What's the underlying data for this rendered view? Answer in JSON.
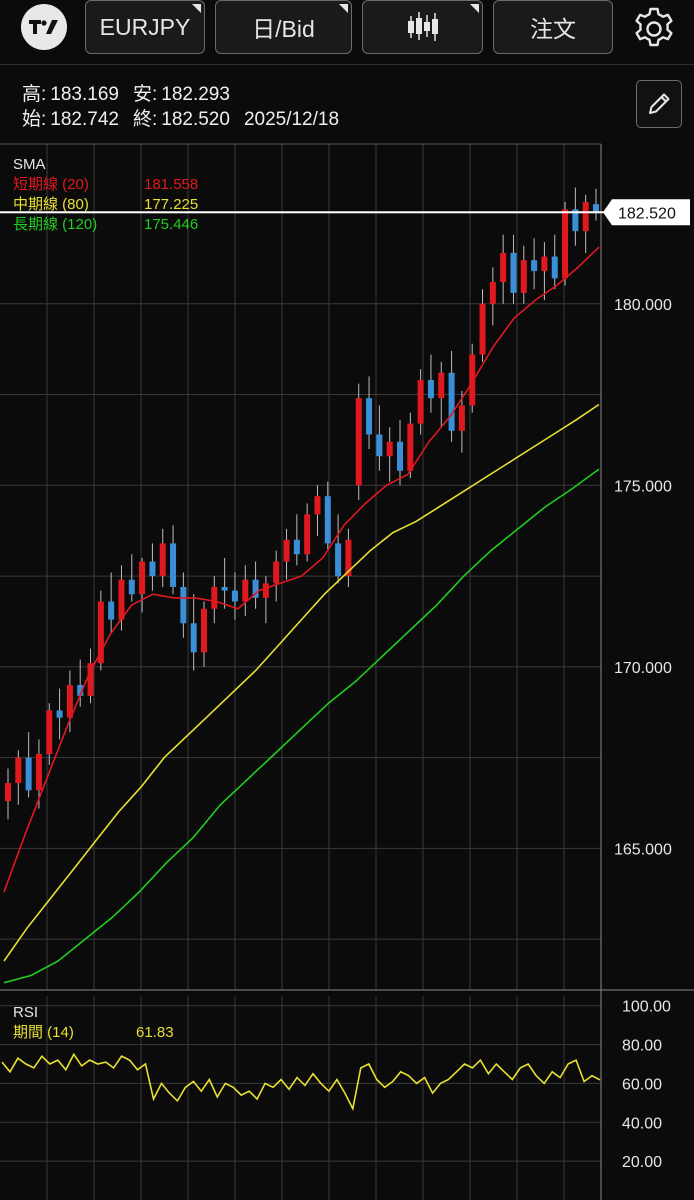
{
  "toolbar": {
    "symbol": "EURJPY",
    "timeframe": "日/Bid",
    "order_label": "注文",
    "icons": [
      "tradingview-logo-icon",
      "candlestick-chart-icon",
      "settings-gear-icon"
    ]
  },
  "ohlc": {
    "high_label": "高:",
    "high": "183.169",
    "low_label": "安:",
    "low": "182.293",
    "open_label": "始:",
    "open": "182.742",
    "close_label": "終:",
    "close": "182.520",
    "date": "2025/12/18"
  },
  "sma_legend": {
    "title": "SMA",
    "items": [
      {
        "name": "短期線 (20)",
        "value": "181.558",
        "color": "#e0191f"
      },
      {
        "name": "中期線 (80)",
        "value": "177.225",
        "color": "#e8e030"
      },
      {
        "name": "長期線 (120)",
        "value": "175.446",
        "color": "#22cc22"
      }
    ]
  },
  "rsi_legend": {
    "title": "RSI",
    "period_label": "期間 (14)",
    "value": "61.83",
    "color": "#e8e030"
  },
  "colors": {
    "up_candle": "#e0191f",
    "down_candle": "#3a8fd8",
    "grid": "#3a3a3a",
    "background": "#0b0b0b"
  },
  "chart_data": {
    "type": "line",
    "title": "EURJPY 日/Bid",
    "price_axis": {
      "ticks": [
        "180.000",
        "175.000",
        "170.000",
        "165.000"
      ],
      "ylim": [
        161.1,
        184.4
      ],
      "current_price_label": "182.520",
      "current_price": 182.52
    },
    "rsi_axis": {
      "ticks": [
        "100.00",
        "80.00",
        "60.00",
        "40.00",
        "20.00"
      ],
      "ylim": [
        0,
        105
      ]
    },
    "grid": true,
    "series": [
      {
        "name": "短期線 (20)",
        "color": "#e0191f",
        "values": [
          163.8,
          165.4,
          166.9,
          168.4,
          169.8,
          170.9,
          171.7,
          172.0,
          171.9,
          171.9,
          171.8,
          171.6,
          172.1,
          172.3,
          172.5,
          173.0,
          173.9,
          174.5,
          175.0,
          175.3,
          176.2,
          176.9,
          177.8,
          178.8,
          179.6,
          180.1,
          180.5,
          181.0,
          181.56
        ]
      },
      {
        "name": "中期線 (80)",
        "color": "#e8e030",
        "values": [
          161.9,
          162.8,
          163.6,
          164.4,
          165.2,
          166.0,
          166.7,
          167.5,
          168.1,
          168.7,
          169.3,
          169.9,
          170.6,
          171.3,
          172.0,
          172.6,
          173.2,
          173.7,
          174.0,
          174.4,
          174.8,
          175.2,
          175.6,
          176.0,
          176.4,
          176.8,
          177.225
        ]
      },
      {
        "name": "長期線 (120)",
        "color": "#22cc22",
        "values": [
          161.3,
          161.5,
          161.9,
          162.5,
          163.1,
          163.8,
          164.6,
          165.3,
          166.2,
          166.9,
          167.6,
          168.3,
          169.0,
          169.6,
          170.3,
          171.0,
          171.7,
          172.5,
          173.2,
          173.8,
          174.4,
          174.9,
          175.446
        ]
      },
      {
        "name": "RSI (14)",
        "color": "#e8e030",
        "values": [
          71,
          66,
          73,
          70,
          68,
          74,
          70,
          72,
          67,
          75,
          69,
          72,
          70,
          71,
          68,
          74,
          72,
          67,
          70,
          52,
          60,
          55,
          51,
          58,
          61,
          56,
          62,
          53,
          60,
          58,
          54,
          56,
          52,
          60,
          58,
          62,
          57,
          63,
          59,
          65,
          60,
          56,
          62,
          55,
          47,
          68,
          70,
          62,
          58,
          61,
          66,
          64,
          60,
          63,
          55,
          60,
          62,
          66,
          70,
          68,
          72,
          65,
          70,
          66,
          62,
          68,
          70,
          64,
          60,
          66,
          63,
          70,
          72,
          61,
          64,
          61.83
        ]
      }
    ],
    "candles_ohlc": [
      [
        166.3,
        167.2,
        165.8,
        166.8
      ],
      [
        166.8,
        167.7,
        166.2,
        167.5
      ],
      [
        167.5,
        168.2,
        166.4,
        166.6
      ],
      [
        166.6,
        168.0,
        166.1,
        167.6
      ],
      [
        167.6,
        169.0,
        167.3,
        168.8
      ],
      [
        168.8,
        169.4,
        168.0,
        168.6
      ],
      [
        168.6,
        169.9,
        168.2,
        169.5
      ],
      [
        169.5,
        170.2,
        168.9,
        169.2
      ],
      [
        169.2,
        170.5,
        169.0,
        170.1
      ],
      [
        170.1,
        172.1,
        169.9,
        171.8
      ],
      [
        171.8,
        172.6,
        170.9,
        171.3
      ],
      [
        171.3,
        172.8,
        171.0,
        172.4
      ],
      [
        172.4,
        173.1,
        171.8,
        172.0
      ],
      [
        172.0,
        173.0,
        171.5,
        172.9
      ],
      [
        172.9,
        173.4,
        172.1,
        172.5
      ],
      [
        172.5,
        173.8,
        172.2,
        173.4
      ],
      [
        173.4,
        173.9,
        172.0,
        172.2
      ],
      [
        172.2,
        172.6,
        170.8,
        171.2
      ],
      [
        171.2,
        172.0,
        169.9,
        170.4
      ],
      [
        170.4,
        171.8,
        170.0,
        171.6
      ],
      [
        171.6,
        172.5,
        171.2,
        172.2
      ],
      [
        172.2,
        173.0,
        171.6,
        172.1
      ],
      [
        172.1,
        172.6,
        171.3,
        171.8
      ],
      [
        171.8,
        172.8,
        171.4,
        172.4
      ],
      [
        172.4,
        172.9,
        171.6,
        171.9
      ],
      [
        171.9,
        172.5,
        171.2,
        172.3
      ],
      [
        172.3,
        173.2,
        171.8,
        172.9
      ],
      [
        172.9,
        173.8,
        172.4,
        173.5
      ],
      [
        173.5,
        174.2,
        172.8,
        173.1
      ],
      [
        173.1,
        174.5,
        172.9,
        174.2
      ],
      [
        174.2,
        175.0,
        173.6,
        174.7
      ],
      [
        174.7,
        175.1,
        173.2,
        173.4
      ],
      [
        173.4,
        174.2,
        172.3,
        172.5
      ],
      [
        172.5,
        173.8,
        172.2,
        173.5
      ],
      [
        175.0,
        177.8,
        174.6,
        177.4
      ],
      [
        177.4,
        178.0,
        176.0,
        176.4
      ],
      [
        176.4,
        177.2,
        175.4,
        175.8
      ],
      [
        175.8,
        176.6,
        175.1,
        176.2
      ],
      [
        176.2,
        176.8,
        175.0,
        175.4
      ],
      [
        175.4,
        177.0,
        175.2,
        176.7
      ],
      [
        176.7,
        178.2,
        176.4,
        177.9
      ],
      [
        177.9,
        178.6,
        177.0,
        177.4
      ],
      [
        177.4,
        178.4,
        176.6,
        178.1
      ],
      [
        178.1,
        178.7,
        176.2,
        176.5
      ],
      [
        176.5,
        177.6,
        175.9,
        177.2
      ],
      [
        177.2,
        178.9,
        177.0,
        178.6
      ],
      [
        178.6,
        180.4,
        178.4,
        180.0
      ],
      [
        180.0,
        181.0,
        179.4,
        180.6
      ],
      [
        180.6,
        181.9,
        180.0,
        181.4
      ],
      [
        181.4,
        181.9,
        180.0,
        180.3
      ],
      [
        180.3,
        181.6,
        180.0,
        181.2
      ],
      [
        181.2,
        181.8,
        180.4,
        180.9
      ],
      [
        180.9,
        181.7,
        180.1,
        181.3
      ],
      [
        181.3,
        181.9,
        180.4,
        180.7
      ],
      [
        180.7,
        182.8,
        180.5,
        182.6
      ],
      [
        182.6,
        183.2,
        181.6,
        182.0
      ],
      [
        182.0,
        183.0,
        181.4,
        182.8
      ],
      [
        182.742,
        183.169,
        182.293,
        182.52
      ]
    ]
  }
}
